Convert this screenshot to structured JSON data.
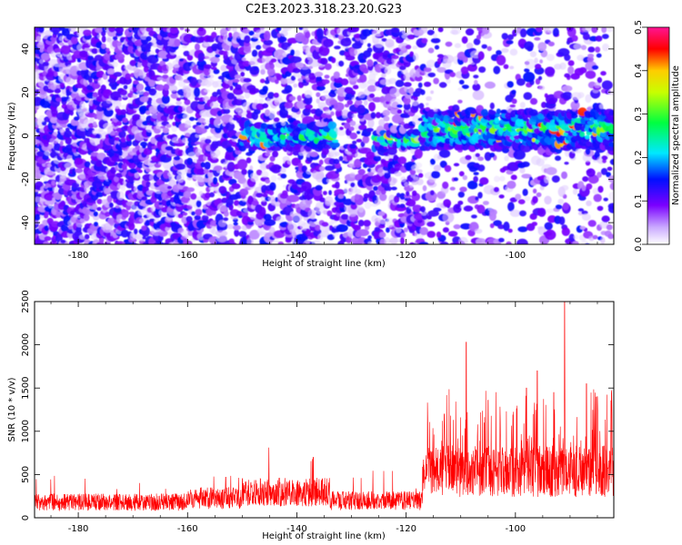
{
  "title": "C2E3.2023.318.23.20.G23",
  "chart_data": [
    {
      "type": "heatmap",
      "title": "C2E3.2023.318.23.20.G23",
      "xlabel": "Height of straight line (km)",
      "ylabel": "Frequency (Hz)",
      "xlim": [
        -188,
        -82
      ],
      "ylim": [
        -50,
        50
      ],
      "x_ticks": [
        -180,
        -160,
        -140,
        -120,
        -100
      ],
      "y_ticks": [
        -40,
        -20,
        0,
        20,
        40
      ],
      "colorbar": {
        "label": "Normalized spectral amplitude",
        "range": [
          0.0,
          0.5
        ],
        "ticks": [
          "0.0",
          "0.1",
          "0.2",
          "0.3",
          "0.4",
          "0.5"
        ],
        "colors": [
          "#ffffff",
          "#7a00ff",
          "#0000ff",
          "#00ffff",
          "#00ff00",
          "#ffff00",
          "#ff0000",
          "#ff00aa"
        ]
      },
      "features": [
        {
          "description_key": "band",
          "x_range": [
            -150,
            -133
          ],
          "freq_center": 0,
          "freq_halfwidth": 6
        },
        {
          "description_key": "band",
          "x_range": [
            -126,
            -118
          ],
          "freq_center": -2,
          "freq_halfwidth": 4
        },
        {
          "description_key": "band",
          "x_range": [
            -117,
            -82
          ],
          "freq_center": 3,
          "freq_halfwidth": 9
        }
      ],
      "grid": false
    },
    {
      "type": "line",
      "xlabel": "Height of straight line (km)",
      "ylabel": "SNR (10 * v/v)",
      "xlim": [
        -188,
        -82
      ],
      "ylim": [
        0,
        2500
      ],
      "x_ticks": [
        -180,
        -160,
        -140,
        -120,
        -100
      ],
      "y_ticks": [
        0,
        500,
        1000,
        1500,
        2000,
        2500
      ],
      "color": "#ff0000",
      "baseline_segments": [
        {
          "x_range": [
            -188,
            -160
          ],
          "snr_typical": 200
        },
        {
          "x_range": [
            -160,
            -150
          ],
          "snr_typical": 250
        },
        {
          "x_range": [
            -150,
            -134
          ],
          "snr_typical": 330
        },
        {
          "x_range": [
            -134,
            -117
          ],
          "snr_typical": 220
        },
        {
          "x_range": [
            -117,
            -82
          ],
          "snr_typical": 600
        }
      ],
      "peaks": [
        {
          "x": -153,
          "y": 470
        },
        {
          "x": -137,
          "y": 700
        },
        {
          "x": -113,
          "y": 1200
        },
        {
          "x": -109,
          "y": 2030
        },
        {
          "x": -105,
          "y": 1360
        },
        {
          "x": -98,
          "y": 1500
        },
        {
          "x": -96,
          "y": 1700
        },
        {
          "x": -93,
          "y": 1450
        },
        {
          "x": -91,
          "y": 2500
        },
        {
          "x": -87,
          "y": 1550
        },
        {
          "x": -85,
          "y": 1400
        }
      ],
      "grid": false
    }
  ]
}
